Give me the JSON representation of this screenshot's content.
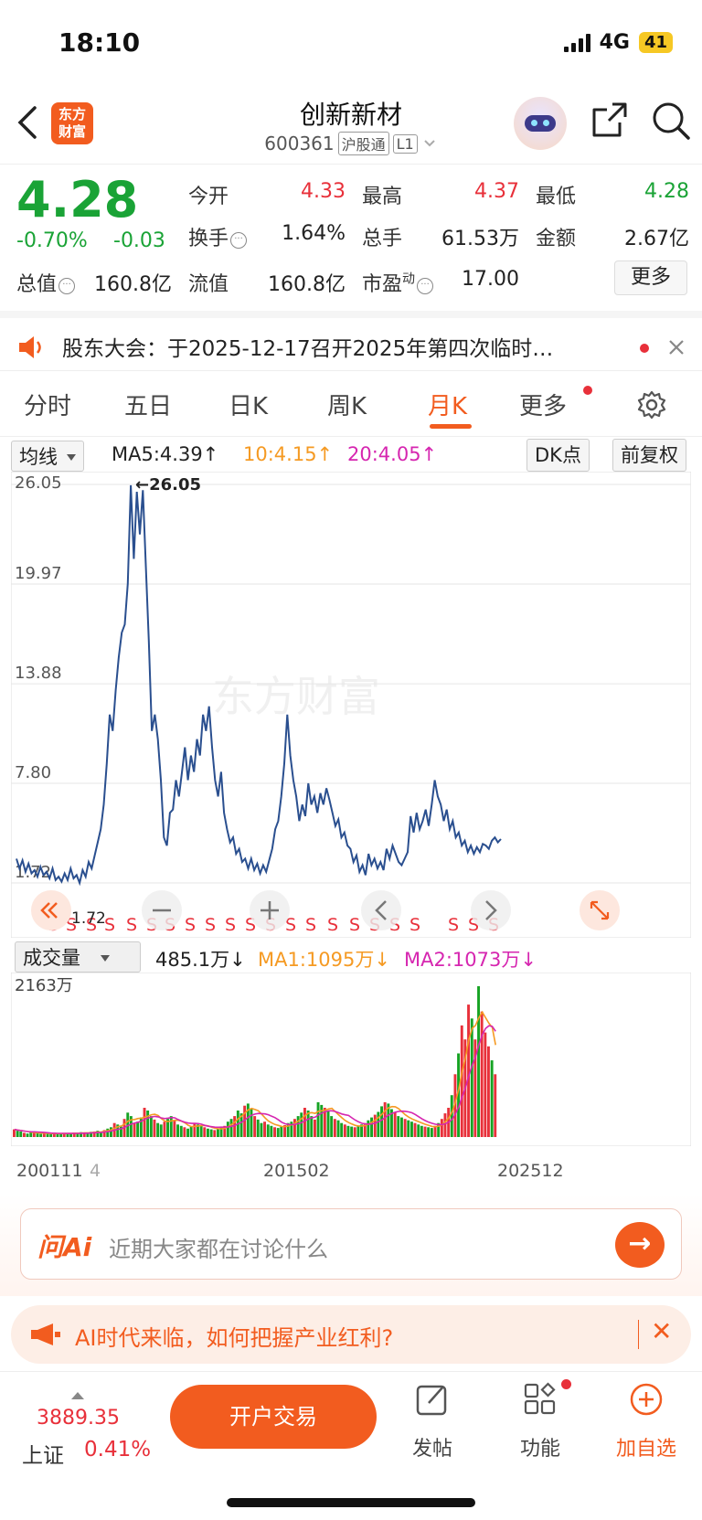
{
  "status": {
    "time": "18:10",
    "network": "4G",
    "battery": "41"
  },
  "nav": {
    "logo_line1": "东方",
    "logo_line2": "财富",
    "title": "创新新材",
    "code": "600361",
    "tag_exchange": "沪股通",
    "tag_level": "L1"
  },
  "quote": {
    "price": "4.28",
    "change_pct": "-0.70%",
    "change": "-0.03",
    "open_label": "今开",
    "open": "4.33",
    "high_label": "最高",
    "high": "4.37",
    "low_label": "最低",
    "low": "4.28",
    "turnover_label": "换手",
    "turnover": "1.64%",
    "volume_label": "总手",
    "volume": "61.53万",
    "amount_label": "金额",
    "amount": "2.67亿",
    "mktcap_label": "总值",
    "mktcap": "160.8亿",
    "float_label": "流值",
    "float_cap": "160.8亿",
    "pe_label": "市盈",
    "pe_sup": "动",
    "pe": "17.00",
    "more": "更多"
  },
  "notice": {
    "text": "股东大会：于2025-12-17召开2025年第四次临时…"
  },
  "tabs": [
    "分时",
    "五日",
    "日K",
    "周K",
    "月K",
    "更多"
  ],
  "ma_bar": {
    "select": "均线",
    "ma5": "MA5:4.39↑",
    "ma10": "10:4.15↑",
    "ma20": "20:4.05↑",
    "dk": "DK点",
    "adjust": "前复权",
    "ma10_color": "#f59a23",
    "ma20_color": "#d626b0"
  },
  "chart_data": {
    "type": "line",
    "y_ticks": [
      "26.05",
      "19.97",
      "13.88",
      "7.80",
      "1.72"
    ],
    "max_label": "←26.05",
    "ylim": [
      1.72,
      26.05
    ],
    "line_color": "#2a4f8f",
    "values": [
      3.2,
      2.6,
      3.1,
      2.4,
      2.9,
      2.3,
      2.5,
      2.1,
      2.7,
      2.2,
      2.4,
      2.0,
      2.6,
      1.9,
      2.1,
      1.8,
      2.3,
      1.9,
      2.6,
      2.0,
      2.2,
      1.72,
      2.5,
      2.1,
      3.0,
      2.6,
      3.4,
      4.2,
      5.0,
      6.5,
      9.0,
      12.0,
      11.0,
      13.5,
      15.5,
      17.0,
      17.5,
      20.0,
      26.0,
      21.5,
      25.6,
      23.0,
      25.7,
      21.0,
      16.5,
      11.0,
      12.0,
      10.5,
      8.0,
      4.5,
      4.0,
      6.0,
      6.2,
      8.0,
      7.0,
      8.5,
      10.0,
      8.0,
      9.5,
      8.5,
      10.5,
      9.5,
      12.0,
      11.0,
      12.5,
      10.0,
      8.0,
      7.0,
      8.5,
      6.0,
      5.0,
      4.2,
      4.5,
      3.5,
      3.8,
      3.0,
      3.2,
      2.6,
      3.2,
      2.5,
      2.9,
      2.3,
      2.8,
      2.4,
      3.1,
      3.8,
      5.0,
      5.5,
      7.0,
      9.0,
      12.0,
      9.5,
      8.0,
      7.0,
      5.5,
      6.5,
      5.8,
      7.8,
      6.5,
      7.0,
      6.0,
      7.2,
      6.5,
      7.5,
      6.8,
      6.0,
      5.2,
      5.6,
      4.5,
      4.8,
      4.0,
      3.8,
      3.0,
      3.4,
      2.4,
      2.8,
      2.2,
      3.5,
      2.8,
      3.2,
      2.6,
      3.0,
      2.5,
      3.8,
      3.2,
      4.0,
      3.5,
      3.0,
      2.8,
      3.2,
      3.6,
      5.8,
      4.8,
      6.0,
      5.0,
      5.5,
      6.2,
      5.2,
      6.5,
      8.0,
      7.0,
      6.5,
      5.5,
      6.2,
      5.0,
      5.5,
      4.5,
      4.8,
      4.0,
      4.3,
      3.6,
      4.0,
      3.5,
      3.9,
      3.6,
      4.1,
      4.0,
      3.8,
      4.3,
      4.5,
      4.2,
      4.4
    ],
    "sell_marks": [
      "S",
      "S",
      "S",
      "S",
      "S",
      "S",
      "S",
      "S",
      "S",
      "S",
      "S",
      "S",
      "S",
      "S",
      "S",
      "S",
      "S",
      "S",
      "S",
      "S",
      "S",
      "S"
    ]
  },
  "volume": {
    "select": "成交量",
    "value": "485.1万↓",
    "ma1": "MA1:1095万↓",
    "ma2": "MA2:1073万↓",
    "ma1_color": "#f59a23",
    "ma2_color": "#d626b0",
    "max_label": "2163万",
    "x_labels": [
      "200111",
      "4",
      "201502",
      "202512"
    ],
    "bars": [
      110,
      90,
      80,
      60,
      50,
      70,
      60,
      55,
      45,
      50,
      60,
      40,
      55,
      45,
      50,
      60,
      45,
      55,
      65,
      50,
      70,
      60,
      55,
      75,
      80,
      90,
      70,
      100,
      120,
      140,
      200,
      180,
      150,
      260,
      350,
      300,
      200,
      220,
      280,
      420,
      380,
      300,
      250,
      200,
      180,
      220,
      260,
      300,
      240,
      180,
      160,
      140,
      120,
      150,
      200,
      180,
      160,
      140,
      120,
      110,
      100,
      120,
      140,
      160,
      220,
      260,
      300,
      380,
      340,
      450,
      480,
      400,
      300,
      250,
      200,
      220,
      180,
      160,
      140,
      130,
      150,
      170,
      200,
      220,
      260,
      300,
      350,
      420,
      380,
      300,
      250,
      500,
      460,
      420,
      380,
      300,
      260,
      240,
      200,
      180,
      160,
      150,
      140,
      160,
      180,
      200,
      240,
      280,
      320,
      360,
      440,
      500,
      480,
      400,
      350,
      300,
      280,
      260,
      240,
      220,
      200,
      180,
      160,
      150,
      140,
      130,
      160,
      200,
      260,
      340,
      420,
      600,
      900,
      1200,
      1600,
      1400,
      1900,
      1700,
      1400,
      2163,
      1800,
      1500,
      1300,
      1100,
      900
    ],
    "bar_colors_up": "#e8303a",
    "bar_colors_down": "#16a323"
  },
  "ai": {
    "logo": "问Ai",
    "placeholder": "近期大家都在讨论什么",
    "go": "→"
  },
  "promo": {
    "text": "AI时代来临，如何把握产业红利?",
    "close": "✕"
  },
  "bottom": {
    "index_value": "3889.35",
    "index_name": "上证",
    "index_pct": "0.41%",
    "trade": "开户交易",
    "post": "发帖",
    "func": "功能",
    "add": "加自选"
  }
}
